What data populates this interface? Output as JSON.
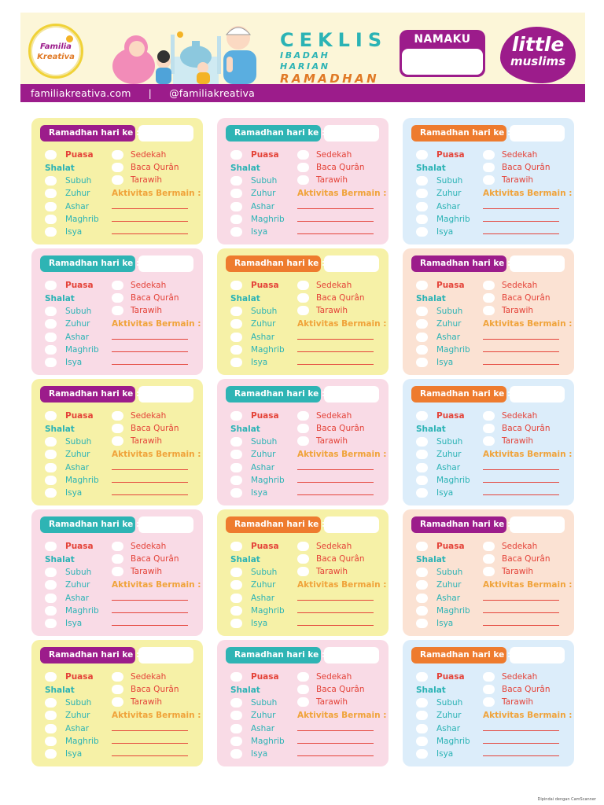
{
  "header": {
    "logo_left": {
      "line1": "Familia",
      "line2": "Kreativa"
    },
    "title_line1": "CEKLIS",
    "title_line2": "IBADAH HARIAN",
    "title_line3": "RAMADHAN",
    "name_label": "NAMAKU",
    "logo_right": {
      "line1": "little",
      "line2": "muslims"
    },
    "website": "familiakreativa.com",
    "separator": "|",
    "social": "@familiakreativa"
  },
  "colors": {
    "yellow_card": "#f6f1a7",
    "pink_card": "#f9dbe6",
    "blue_card": "#dcedfa",
    "peach_card": "#fbe2d3",
    "purple_label": "#9c1c8b",
    "teal_label": "#2eb4b4",
    "orange_label": "#ee7b2e"
  },
  "card_template": {
    "header_label": "Ramadhan hari ke :",
    "left_items": [
      "Puasa",
      "Shalat",
      "Subuh",
      "Zuhur",
      "Ashar",
      "Maghrib",
      "Isya"
    ],
    "right_items": [
      "Sedekah",
      "Baca Qurân",
      "Tarawih"
    ],
    "activities_label": "Aktivitas Bermain :"
  },
  "cards": [
    {
      "bg": "yellow",
      "label": "purple"
    },
    {
      "bg": "pink",
      "label": "teal"
    },
    {
      "bg": "blue",
      "label": "orange"
    },
    {
      "bg": "pink",
      "label": "teal"
    },
    {
      "bg": "yellow",
      "label": "orange"
    },
    {
      "bg": "peach",
      "label": "purple"
    },
    {
      "bg": "yellow",
      "label": "purple"
    },
    {
      "bg": "pink",
      "label": "teal"
    },
    {
      "bg": "blue",
      "label": "orange"
    },
    {
      "bg": "pink",
      "label": "teal"
    },
    {
      "bg": "yellow",
      "label": "orange"
    },
    {
      "bg": "peach",
      "label": "purple"
    },
    {
      "bg": "yellow",
      "label": "purple"
    },
    {
      "bg": "pink",
      "label": "teal"
    },
    {
      "bg": "blue",
      "label": "orange"
    }
  ],
  "footer_note": "Dipindai dengan CamScanner"
}
